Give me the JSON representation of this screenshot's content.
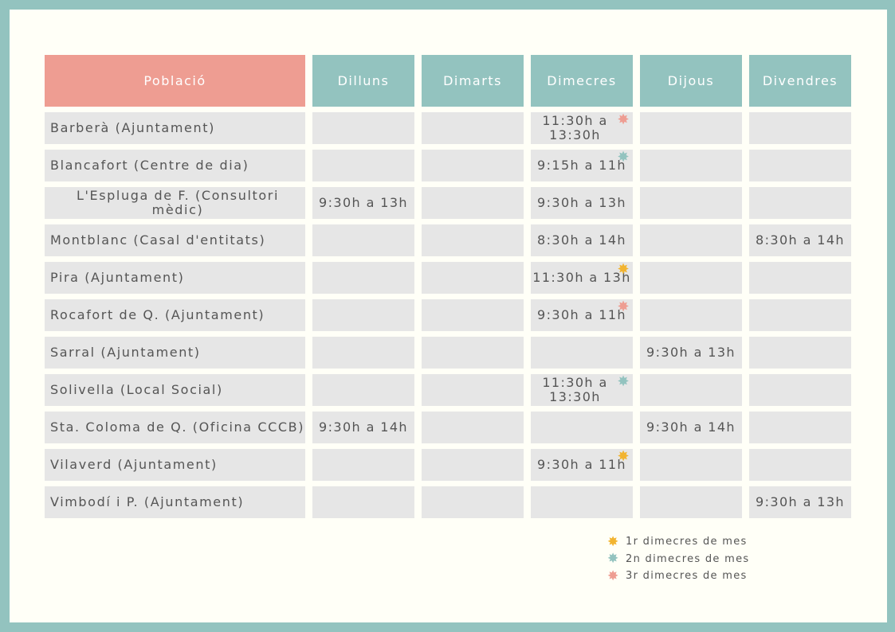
{
  "header": {
    "poblacio": "Població",
    "days": [
      "Dilluns",
      "Dimarts",
      "Dimecres",
      "Dijous",
      "Divendres"
    ]
  },
  "colors": {
    "frame": "#93c3bf",
    "header_day": "#93c3bf",
    "header_poblacio": "#ee9d92",
    "cell": "#e6e6e6",
    "star_1r": "#f2b430",
    "star_2n": "#93c3bf",
    "star_3r": "#ee9d92"
  },
  "rows": [
    {
      "name": "Barberà (Ajuntament)",
      "dilluns": "",
      "dimarts": "",
      "dimecres": "11:30h a 13:30h",
      "dimecres_star": "3r",
      "dijous": "",
      "divendres": ""
    },
    {
      "name": "Blancafort (Centre de dia)",
      "dilluns": "",
      "dimarts": "",
      "dimecres": "9:15h a 11h",
      "dimecres_star": "2n",
      "dijous": "",
      "divendres": ""
    },
    {
      "name": "L'Espluga de F. (Consultori mèdic)",
      "dilluns": "9:30h a 13h",
      "dimarts": "",
      "dimecres": "9:30h a 13h",
      "dimecres_star": "",
      "dijous": "",
      "divendres": ""
    },
    {
      "name": "Montblanc (Casal d'entitats)",
      "dilluns": "",
      "dimarts": "",
      "dimecres": "8:30h a 14h",
      "dimecres_star": "",
      "dijous": "",
      "divendres": "8:30h a 14h"
    },
    {
      "name": "Pira (Ajuntament)",
      "dilluns": "",
      "dimarts": "",
      "dimecres": "11:30h a 13h",
      "dimecres_star": "1r",
      "dijous": "",
      "divendres": ""
    },
    {
      "name": "Rocafort de Q. (Ajuntament)",
      "dilluns": "",
      "dimarts": "",
      "dimecres": "9:30h a 11h",
      "dimecres_star": "3r",
      "dijous": "",
      "divendres": ""
    },
    {
      "name": "Sarral (Ajuntament)",
      "dilluns": "",
      "dimarts": "",
      "dimecres": "",
      "dimecres_star": "",
      "dijous": "9:30h a 13h",
      "divendres": ""
    },
    {
      "name": "Solivella (Local Social)",
      "dilluns": "",
      "dimarts": "",
      "dimecres": "11:30h a 13:30h",
      "dimecres_star": "2n",
      "dijous": "",
      "divendres": ""
    },
    {
      "name": "Sta. Coloma de Q. (Oficina CCCB)",
      "dilluns": "9:30h a 14h",
      "dimarts": "",
      "dimecres": "",
      "dimecres_star": "",
      "dijous": "9:30h a 14h",
      "divendres": ""
    },
    {
      "name": "Vilaverd (Ajuntament)",
      "dilluns": "",
      "dimarts": "",
      "dimecres": "9:30h a 11h",
      "dimecres_star": "1r",
      "dijous": "",
      "divendres": ""
    },
    {
      "name": "Vimbodí i P. (Ajuntament)",
      "dilluns": "",
      "dimarts": "",
      "dimecres": "",
      "dimecres_star": "",
      "dijous": "",
      "divendres": "9:30h a 13h"
    }
  ],
  "legend": [
    {
      "key": "1r",
      "label": "1r dimecres de mes",
      "icon": "star-icon"
    },
    {
      "key": "2n",
      "label": "2n dimecres de mes",
      "icon": "star-icon"
    },
    {
      "key": "3r",
      "label": "3r dimecres de mes",
      "icon": "star-icon"
    }
  ]
}
